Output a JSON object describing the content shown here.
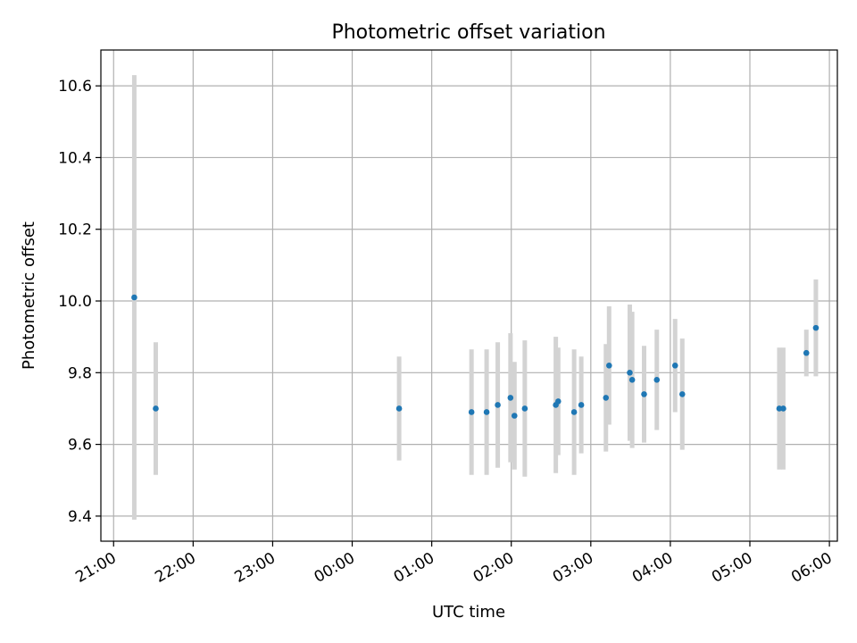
{
  "chart_data": {
    "type": "scatter",
    "title": "Photometric offset variation",
    "xlabel": "UTC time",
    "ylabel": "Photometric offset",
    "x_ticks": [
      "21:00",
      "22:00",
      "23:00",
      "00:00",
      "01:00",
      "02:00",
      "03:00",
      "04:00",
      "05:00",
      "06:00"
    ],
    "x_tick_hours": [
      0,
      1,
      2,
      3,
      4,
      5,
      6,
      7,
      8,
      9
    ],
    "xlim_hours": [
      -0.16,
      9.1
    ],
    "y_ticks": [
      "9.4",
      "9.6",
      "9.8",
      "10.0",
      "10.2",
      "10.4",
      "10.6"
    ],
    "y_tick_values": [
      9.4,
      9.6,
      9.8,
      10.0,
      10.2,
      10.4,
      10.6
    ],
    "ylim": [
      9.33,
      10.7
    ],
    "grid": true,
    "marker_color": "#1f77b4",
    "errorbar_color": "#d3d3d3",
    "points": [
      {
        "hours": 0.26,
        "y": 10.01,
        "err": 0.62
      },
      {
        "hours": 0.53,
        "y": 9.7,
        "err": 0.185
      },
      {
        "hours": 3.59,
        "y": 9.7,
        "err": 0.145
      },
      {
        "hours": 4.5,
        "y": 9.69,
        "err": 0.175
      },
      {
        "hours": 4.69,
        "y": 9.69,
        "err": 0.175
      },
      {
        "hours": 4.83,
        "y": 9.71,
        "err": 0.175
      },
      {
        "hours": 4.99,
        "y": 9.73,
        "err": 0.18
      },
      {
        "hours": 5.04,
        "y": 9.68,
        "err": 0.15
      },
      {
        "hours": 5.17,
        "y": 9.7,
        "err": 0.19
      },
      {
        "hours": 5.56,
        "y": 9.71,
        "err": 0.19
      },
      {
        "hours": 5.59,
        "y": 9.72,
        "err": 0.15
      },
      {
        "hours": 5.79,
        "y": 9.69,
        "err": 0.175
      },
      {
        "hours": 5.88,
        "y": 9.71,
        "err": 0.135
      },
      {
        "hours": 6.19,
        "y": 9.73,
        "err": 0.15
      },
      {
        "hours": 6.23,
        "y": 9.82,
        "err": 0.165
      },
      {
        "hours": 6.49,
        "y": 9.8,
        "err": 0.19
      },
      {
        "hours": 6.52,
        "y": 9.78,
        "err": 0.19
      },
      {
        "hours": 6.67,
        "y": 9.74,
        "err": 0.135
      },
      {
        "hours": 6.83,
        "y": 9.78,
        "err": 0.14
      },
      {
        "hours": 7.06,
        "y": 9.82,
        "err": 0.13
      },
      {
        "hours": 7.15,
        "y": 9.74,
        "err": 0.155
      },
      {
        "hours": 8.37,
        "y": 9.7,
        "err": 0.17
      },
      {
        "hours": 8.42,
        "y": 9.7,
        "err": 0.17
      },
      {
        "hours": 8.71,
        "y": 9.855,
        "err": 0.065
      },
      {
        "hours": 8.83,
        "y": 9.925,
        "err": 0.135
      }
    ]
  }
}
